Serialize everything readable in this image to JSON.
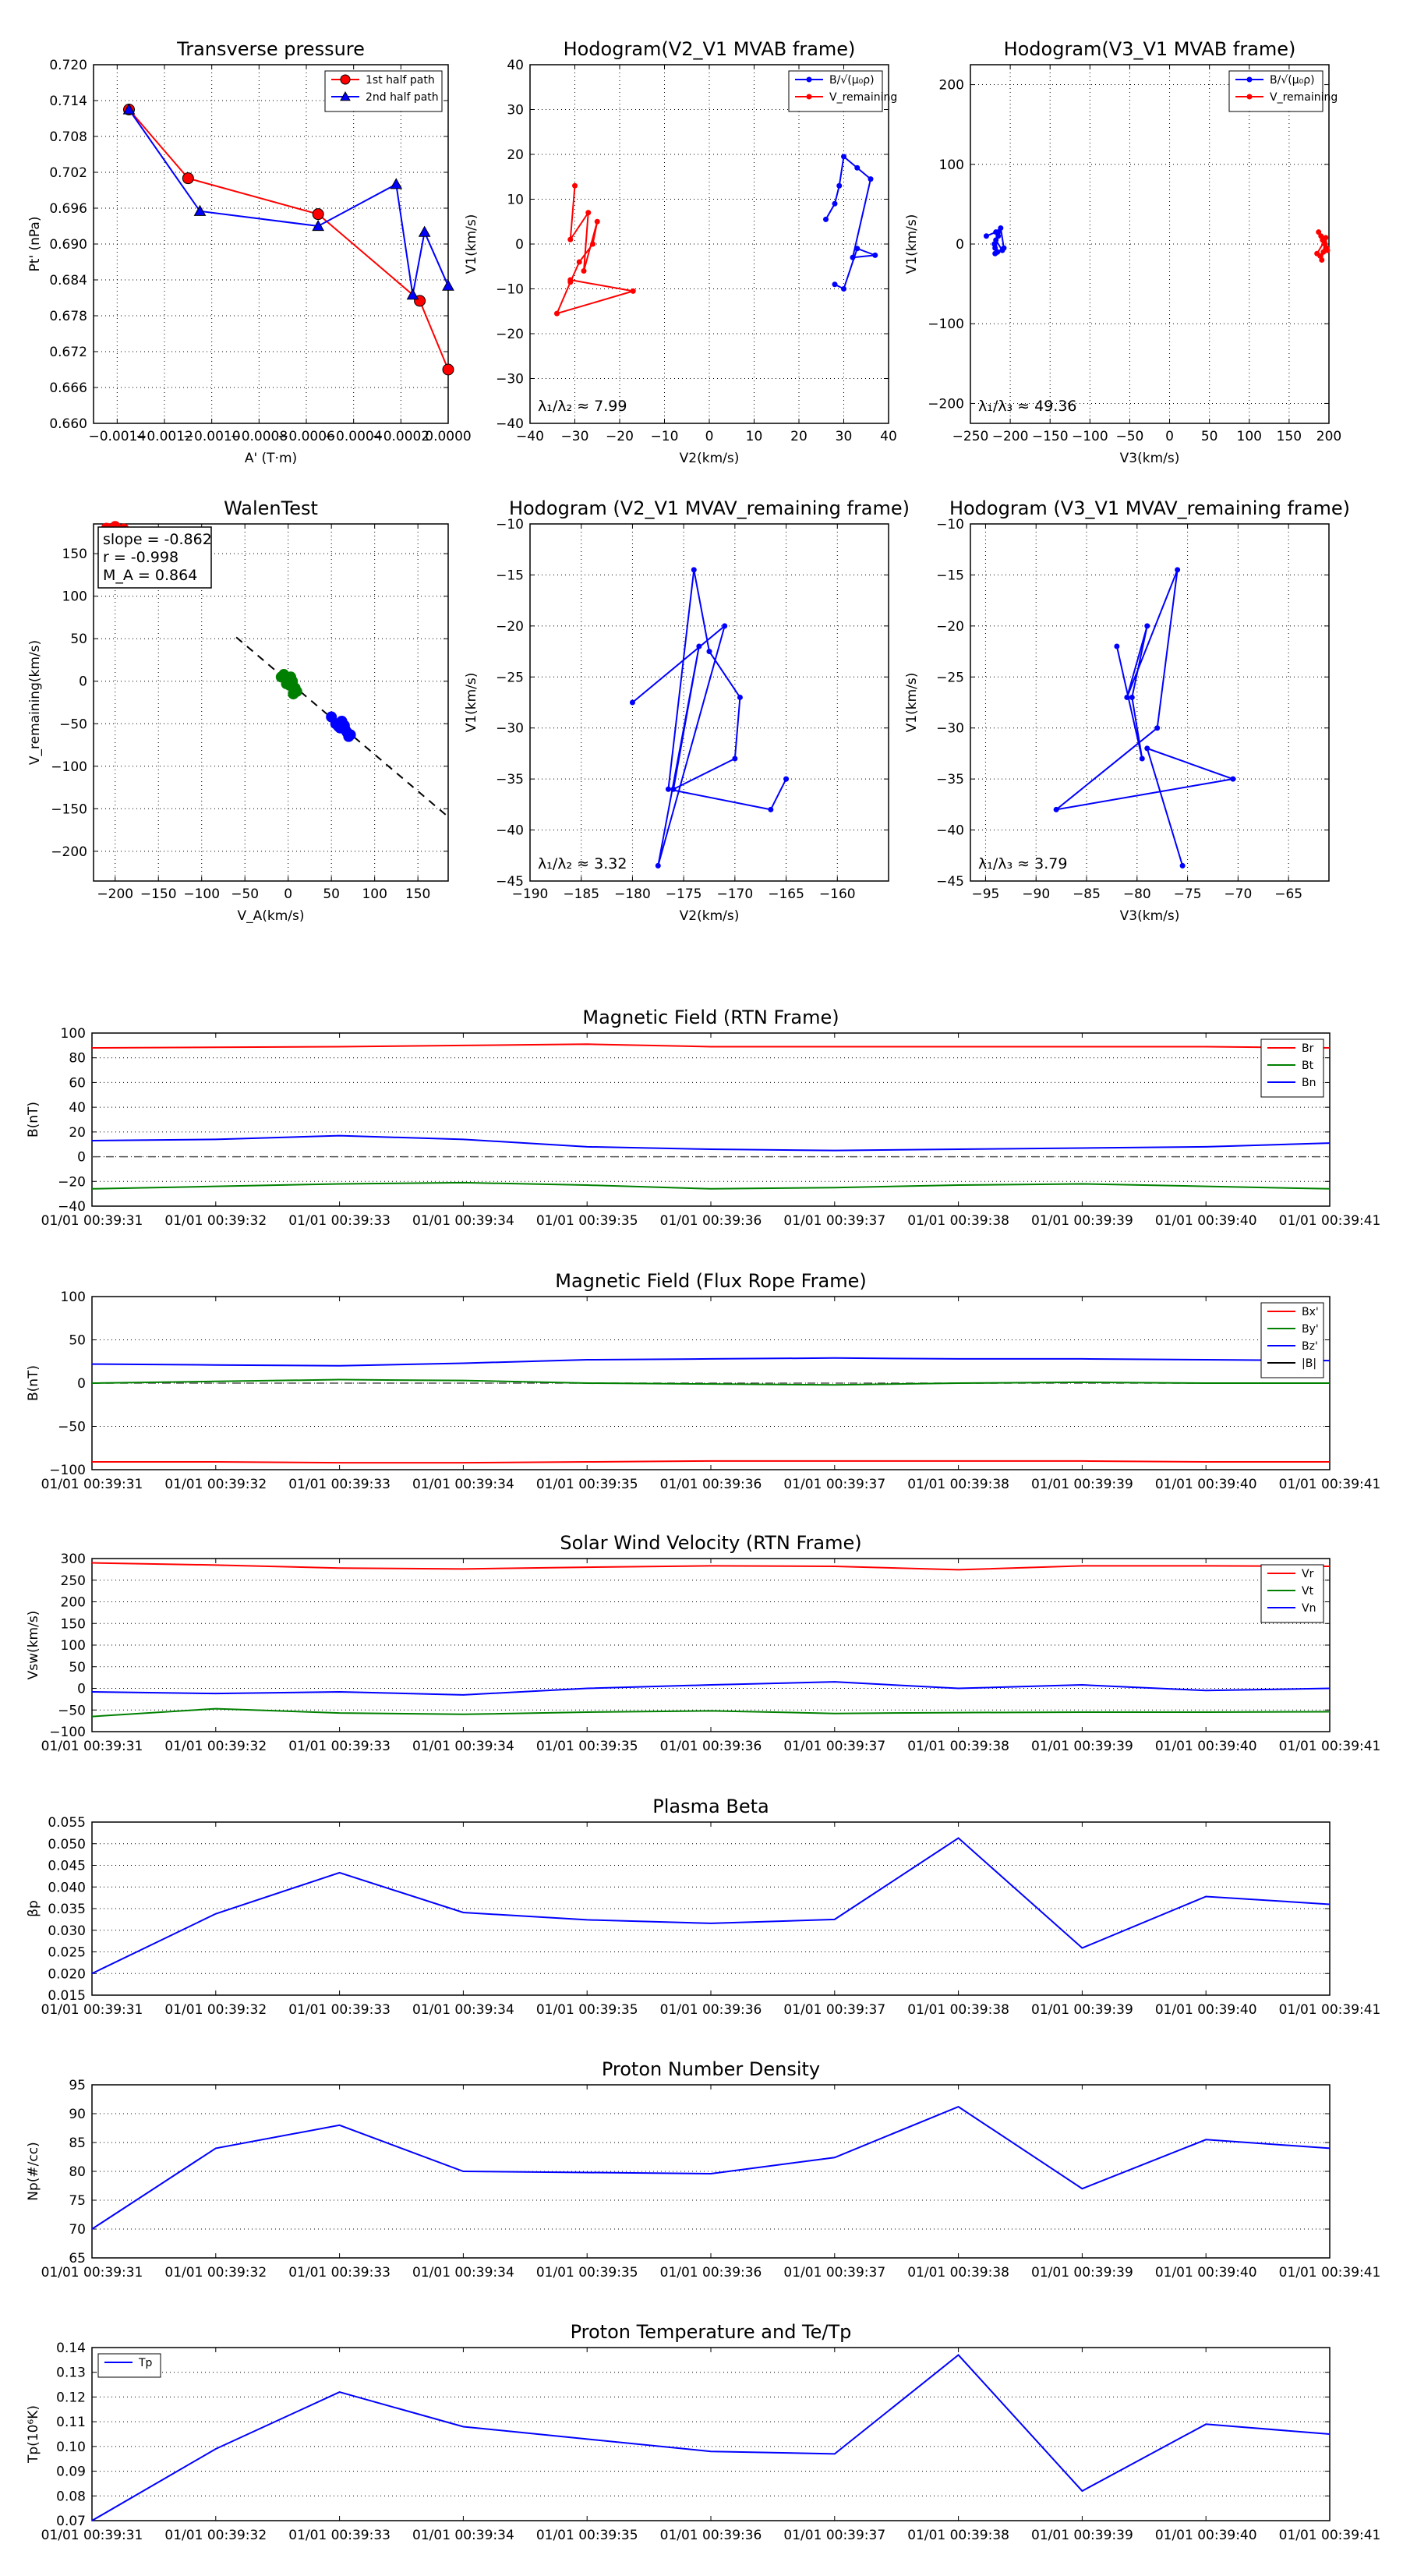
{
  "chart_data": [
    {
      "id": "tp",
      "type": "line",
      "title": "Transverse pressure",
      "xlabel": "A' (T·m)",
      "ylabel": "Pt' (nPa)",
      "xlim": [
        -0.0015,
        0.0
      ],
      "ylim": [
        0.66,
        0.72
      ],
      "xticks": [
        -0.0014,
        -0.0012,
        -0.001,
        -0.0008,
        -0.0006,
        -0.0004,
        -0.0002,
        0.0
      ],
      "xtick_labels": [
        "−0.0014",
        "−0.0012",
        "−0.0010",
        "−0.0008",
        "−0.0006",
        "−0.0004",
        "−0.0002",
        "0.0000"
      ],
      "yticks": [
        0.66,
        0.666,
        0.672,
        0.678,
        0.684,
        0.69,
        0.696,
        0.702,
        0.708,
        0.714,
        0.72
      ],
      "ytick_labels": [
        "0.660",
        "0.666",
        "0.672",
        "0.678",
        "0.684",
        "0.690",
        "0.696",
        "0.702",
        "0.708",
        "0.714",
        "0.720"
      ],
      "legend": "top-right",
      "series": [
        {
          "name": "1st half path",
          "color": "#ff0000",
          "marker": "circle",
          "x": [
            -0.00135,
            -0.0011,
            -0.00055,
            -0.00012,
            0.0
          ],
          "y": [
            0.7125,
            0.701,
            0.695,
            0.6805,
            0.669
          ]
        },
        {
          "name": "2nd half path",
          "color": "#0000ff",
          "marker": "triangle",
          "x": [
            -0.00135,
            -0.00105,
            -0.00055,
            -0.00022,
            -0.00015,
            -0.0001,
            0.0
          ],
          "y": [
            0.7125,
            0.6955,
            0.693,
            0.7,
            0.6815,
            0.692,
            0.683
          ]
        }
      ]
    },
    {
      "id": "h1",
      "type": "scatter",
      "title": "Hodogram(V2_V1 MVAB frame)",
      "xlabel": "V2(km/s)",
      "ylabel": "V1(km/s)",
      "xlim": [
        -40,
        40
      ],
      "ylim": [
        -40,
        40
      ],
      "xticks": [
        -40,
        -30,
        -20,
        -10,
        0,
        10,
        20,
        30,
        40
      ],
      "xtick_labels": [
        "−40",
        "−30",
        "−20",
        "−10",
        "0",
        "10",
        "20",
        "30",
        "40"
      ],
      "yticks": [
        -40,
        -30,
        -20,
        -10,
        0,
        10,
        20,
        30,
        40
      ],
      "ytick_labels": [
        "−40",
        "−30",
        "−20",
        "−10",
        "0",
        "10",
        "20",
        "30",
        "40"
      ],
      "legend": "top-right",
      "annotation": "λ₁/λ₂ ≈ 7.99",
      "series": [
        {
          "name": "B/√(μ₀ρ)",
          "color": "#0000ff",
          "x": [
            26,
            28,
            29,
            30,
            33,
            36,
            32,
            37,
            33,
            30,
            28
          ],
          "y": [
            5.5,
            9,
            13,
            19.5,
            17,
            14.5,
            -3,
            -2.5,
            -1,
            -10,
            -9
          ]
        },
        {
          "name": "V_remaining",
          "color": "#ff0000",
          "x": [
            -30,
            -31,
            -27,
            -28,
            -25,
            -26,
            -29,
            -31,
            -34,
            -17,
            -31
          ],
          "y": [
            13,
            1,
            7,
            -6,
            5,
            0,
            -4,
            -8.5,
            -15.5,
            -10.5,
            -8
          ]
        }
      ]
    },
    {
      "id": "h2",
      "type": "scatter",
      "title": "Hodogram(V3_V1 MVAB frame)",
      "xlabel": "V3(km/s)",
      "ylabel": "V1(km/s)",
      "xlim": [
        -250,
        200
      ],
      "ylim": [
        -225,
        225
      ],
      "xticks": [
        -250,
        -200,
        -150,
        -100,
        -50,
        0,
        50,
        100,
        150,
        200
      ],
      "xtick_labels": [
        "−250",
        "−200",
        "−150",
        "−100",
        "−50",
        "0",
        "50",
        "100",
        "150",
        "200"
      ],
      "yticks": [
        -200,
        -100,
        0,
        100,
        200
      ],
      "ytick_labels": [
        "−200",
        "−100",
        "0",
        "100",
        "200"
      ],
      "legend": "top-right",
      "annotation": "λ₁/λ₃ ≈ 49.36",
      "series": [
        {
          "name": "B/√(μ₀ρ)",
          "color": "#0000ff",
          "x": [
            -230,
            -218,
            -212,
            -208,
            -216,
            -219,
            -220,
            -215,
            -218,
            -210,
            -219,
            -215
          ],
          "y": [
            10,
            15,
            20,
            -5,
            -10,
            -5,
            0,
            10,
            5,
            -8,
            -12,
            15
          ]
        },
        {
          "name": "V_remaining",
          "color": "#ff0000",
          "x": [
            187,
            190,
            192,
            195,
            197,
            193,
            189,
            191,
            196,
            198,
            194,
            185
          ],
          "y": [
            15,
            10,
            5,
            0,
            -5,
            -10,
            -15,
            -20,
            8,
            -8,
            3,
            -12
          ]
        }
      ]
    },
    {
      "id": "walen",
      "type": "scatter",
      "title": "WalenTest",
      "xlabel": "V_A(km/s)",
      "ylabel": "V_remaining(km/s)",
      "xlim": [
        -225,
        185
      ],
      "ylim": [
        -235,
        185
      ],
      "xticks": [
        -200,
        -150,
        -100,
        -50,
        0,
        50,
        100,
        150
      ],
      "xtick_labels": [
        "−200",
        "−150",
        "−100",
        "−50",
        "0",
        "50",
        "100",
        "150"
      ],
      "yticks": [
        -200,
        -150,
        -100,
        -50,
        0,
        50,
        100,
        150
      ],
      "ytick_labels": [
        "−200",
        "−150",
        "−100",
        "−50",
        "0",
        "50",
        "100",
        "150"
      ],
      "stats": [
        "slope = -0.862",
        "r = -0.998",
        "M_A = 0.864"
      ],
      "fit_line": {
        "slope": -0.862,
        "intercept": 0
      },
      "series": [
        {
          "name": "red",
          "color": "#ff0000",
          "x": [
            -210,
            -205,
            -200,
            -195,
            -190,
            -200
          ],
          "y": [
            180,
            178,
            182,
            176,
            179,
            174
          ]
        },
        {
          "name": "green",
          "color": "#008000",
          "x": [
            -8,
            -5,
            0,
            2,
            5,
            8,
            10,
            -2,
            3,
            6
          ],
          "y": [
            5,
            8,
            2,
            -5,
            0,
            -8,
            -12,
            -3,
            5,
            -15
          ]
        },
        {
          "name": "blue",
          "color": "#0000ff",
          "x": [
            50,
            55,
            60,
            62,
            65,
            68,
            70,
            58,
            66,
            72
          ],
          "y": [
            -42,
            -50,
            -55,
            -47,
            -52,
            -60,
            -65,
            -53,
            -57,
            -63
          ]
        }
      ]
    },
    {
      "id": "h3",
      "type": "line",
      "title": "Hodogram (V2_V1 MVAV_remaining frame)",
      "xlabel": "V2(km/s)",
      "ylabel": "V1(km/s)",
      "xlim": [
        -190,
        -155
      ],
      "ylim": [
        -45,
        -10
      ],
      "xticks": [
        -190,
        -185,
        -180,
        -175,
        -170,
        -165,
        -160
      ],
      "xtick_labels": [
        "−190",
        "−185",
        "−180",
        "−175",
        "−170",
        "−165",
        "−160"
      ],
      "yticks": [
        -45,
        -40,
        -35,
        -30,
        -25,
        -20,
        -15,
        -10
      ],
      "ytick_labels": [
        "−45",
        "−40",
        "−35",
        "−30",
        "−25",
        "−20",
        "−15",
        "−10"
      ],
      "annotation": "λ₁/λ₂ ≈ 3.32",
      "series": [
        {
          "name": "path",
          "color": "#0000ff",
          "x": [
            -180,
            -171,
            -177.5,
            -173.5,
            -176,
            -170,
            -169.5,
            -172.5,
            -174,
            -176.5,
            -166.5,
            -165
          ],
          "y": [
            -27.5,
            -20,
            -43.5,
            -22,
            -36,
            -33,
            -27,
            -22.5,
            -14.5,
            -36,
            -38,
            -35
          ]
        }
      ]
    },
    {
      "id": "h4",
      "type": "line",
      "title": "Hodogram (V3_V1 MVAV_remaining frame)",
      "xlabel": "V3(km/s)",
      "ylabel": "V1(km/s)",
      "xlim": [
        -96.5,
        -61
      ],
      "ylim": [
        -45,
        -10
      ],
      "xticks": [
        -95,
        -90,
        -85,
        -80,
        -75,
        -70,
        -65
      ],
      "xtick_labels": [
        "−95",
        "−90",
        "−85",
        "−80",
        "−75",
        "−70",
        "−65"
      ],
      "yticks": [
        -45,
        -40,
        -35,
        -30,
        -25,
        -20,
        -15,
        -10
      ],
      "ytick_labels": [
        "−45",
        "−40",
        "−35",
        "−30",
        "−25",
        "−20",
        "−15",
        "−10"
      ],
      "annotation": "λ₁/λ₃ ≈ 3.79",
      "series": [
        {
          "name": "path",
          "color": "#0000ff",
          "x": [
            -82,
            -79.5,
            -80.5,
            -79,
            -81,
            -76,
            -78,
            -88,
            -70.5,
            -79,
            -75.5
          ],
          "y": [
            -22,
            -33,
            -27,
            -20,
            -27,
            -14.5,
            -30,
            -38,
            -35,
            -32,
            -43.5
          ]
        }
      ]
    },
    {
      "id": "mag_rtn",
      "type": "line",
      "title": "Magnetic Field (RTN Frame)",
      "xlabel": "",
      "ylabel": "B(nT)",
      "ylim": [
        -40,
        100
      ],
      "yticks": [
        -40,
        -20,
        0,
        20,
        40,
        60,
        80,
        100
      ],
      "ytick_labels": [
        "−40",
        "−20",
        "0",
        "20",
        "40",
        "60",
        "80",
        "100"
      ],
      "zero_line": true,
      "legend": "top-right",
      "series": [
        {
          "name": "Br",
          "color": "#ff0000",
          "values": [
            88,
            88.5,
            89,
            90,
            91,
            89,
            89,
            89,
            89,
            89,
            88
          ]
        },
        {
          "name": "Bt",
          "color": "#008000",
          "values": [
            -26,
            -24,
            -22,
            -21,
            -23,
            -26,
            -25,
            -23,
            -22,
            -24,
            -26
          ]
        },
        {
          "name": "Bn",
          "color": "#0000ff",
          "values": [
            13,
            14,
            17,
            14,
            8,
            6,
            5,
            6,
            7,
            8,
            11
          ]
        }
      ]
    },
    {
      "id": "mag_fr",
      "type": "line",
      "title": "Magnetic Field (Flux Rope Frame)",
      "xlabel": "",
      "ylabel": "B(nT)",
      "ylim": [
        -100,
        100
      ],
      "yticks": [
        -100,
        -50,
        0,
        50,
        100
      ],
      "ytick_labels": [
        "−100",
        "−50",
        "0",
        "50",
        "100"
      ],
      "zero_line": true,
      "legend": "top-right",
      "series": [
        {
          "name": "Bx'",
          "color": "#ff0000",
          "values": [
            -91,
            -91,
            -92,
            -92,
            -91,
            -90,
            -90,
            -90,
            -90,
            -91,
            -91
          ]
        },
        {
          "name": "By'",
          "color": "#008000",
          "values": [
            0,
            2,
            4,
            3,
            0,
            -1,
            -2,
            0,
            1,
            0,
            0
          ]
        },
        {
          "name": "Bz'",
          "color": "#0000ff",
          "values": [
            22,
            21,
            20,
            23,
            27,
            28,
            29,
            28,
            28,
            27,
            26
          ]
        },
        {
          "name": "|B|",
          "color": "#000000",
          "values": []
        }
      ]
    },
    {
      "id": "vsw",
      "type": "line",
      "title": "Solar Wind Velocity (RTN Frame)",
      "xlabel": "",
      "ylabel": "Vsw(km/s)",
      "ylim": [
        -100,
        300
      ],
      "yticks": [
        -100,
        -50,
        0,
        50,
        100,
        150,
        200,
        250,
        300
      ],
      "ytick_labels": [
        "−100",
        "−50",
        "0",
        "50",
        "100",
        "150",
        "200",
        "250",
        "300"
      ],
      "legend": "top-right",
      "series": [
        {
          "name": "Vr",
          "color": "#ff0000",
          "values": [
            290,
            285,
            278,
            276,
            280,
            283,
            282,
            274,
            283,
            283,
            282
          ]
        },
        {
          "name": "Vt",
          "color": "#008000",
          "values": [
            -65,
            -47,
            -57,
            -60,
            -55,
            -52,
            -58,
            -56,
            -55,
            -55,
            -54
          ]
        },
        {
          "name": "Vn",
          "color": "#0000ff",
          "values": [
            -8,
            -12,
            -8,
            -15,
            0,
            8,
            15,
            0,
            8,
            -5,
            0
          ]
        }
      ]
    },
    {
      "id": "beta",
      "type": "line",
      "title": "Plasma Beta",
      "xlabel": "",
      "ylabel": "βp",
      "ylim": [
        0.015,
        0.055
      ],
      "yticks": [
        0.015,
        0.02,
        0.025,
        0.03,
        0.035,
        0.04,
        0.045,
        0.05,
        0.055
      ],
      "ytick_labels": [
        "0.015",
        "0.020",
        "0.025",
        "0.030",
        "0.035",
        "0.040",
        "0.045",
        "0.050",
        "0.055"
      ],
      "series": [
        {
          "name": "beta",
          "color": "#0000ff",
          "values": [
            0.02,
            0.0338,
            0.0433,
            0.0341,
            0.0324,
            0.0316,
            0.0325,
            0.0513,
            0.0259,
            0.0378,
            0.036
          ]
        }
      ]
    },
    {
      "id": "np",
      "type": "line",
      "title": "Proton Number Density",
      "xlabel": "",
      "ylabel": "Np(#/cc)",
      "ylim": [
        65,
        95
      ],
      "yticks": [
        65,
        70,
        75,
        80,
        85,
        90,
        95
      ],
      "ytick_labels": [
        "65",
        "70",
        "75",
        "80",
        "85",
        "90",
        "95"
      ],
      "series": [
        {
          "name": "Np",
          "color": "#0000ff",
          "values": [
            70,
            84,
            88,
            80,
            79.8,
            79.6,
            82.4,
            91.2,
            77,
            85.5,
            84
          ]
        }
      ]
    },
    {
      "id": "tp2",
      "type": "line",
      "title": "Proton Temperature and Te/Tp",
      "xlabel": "",
      "ylabel": "Tp(10⁶K)",
      "ylim": [
        0.07,
        0.14
      ],
      "yticks": [
        0.07,
        0.08,
        0.09,
        0.1,
        0.11,
        0.12,
        0.13,
        0.14
      ],
      "ytick_labels": [
        "0.07",
        "0.08",
        "0.09",
        "0.10",
        "0.11",
        "0.12",
        "0.13",
        "0.14"
      ],
      "legend": "top-left",
      "series": [
        {
          "name": "Tp",
          "color": "#0000ff",
          "values": [
            0.07,
            0.099,
            0.122,
            0.108,
            0.103,
            0.098,
            0.097,
            0.137,
            0.082,
            0.109,
            0.105
          ]
        }
      ]
    }
  ],
  "time_labels": [
    "01/01 00:39:31",
    "01/01 00:39:32",
    "01/01 00:39:33",
    "01/01 00:39:34",
    "01/01 00:39:35",
    "01/01 00:39:36",
    "01/01 00:39:37",
    "01/01 00:39:38",
    "01/01 00:39:39",
    "01/01 00:39:40",
    "01/01 00:39:41"
  ]
}
